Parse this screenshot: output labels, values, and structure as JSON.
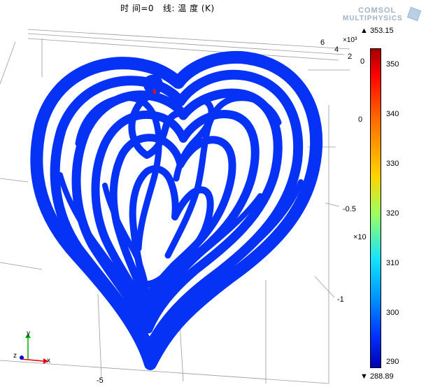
{
  "title_text": "时 间=0   线: 温 度 (K)",
  "logo": {
    "line1": "COMSOL",
    "line2": "MULTIPHYSICS",
    "icon": "comsol-cube-icon"
  },
  "axes": {
    "depth_ticks": [
      "6",
      "4",
      "2"
    ],
    "depth_exponent": "×10³",
    "y_ticks": [
      "0",
      "0",
      "-0.5",
      "-1"
    ],
    "y_exponent": "×10",
    "x_ticks": [
      "-5"
    ],
    "triad": {
      "x": "x",
      "y": "y",
      "z": "z"
    }
  },
  "colorbar": {
    "max_label": "▲ 353.15",
    "min_label": "▼ 288.89",
    "ticks": [
      "350",
      "340",
      "330",
      "320",
      "310",
      "300",
      "290"
    ]
  },
  "colors": {
    "curve": "#0532f5",
    "bar_top": "#a10000",
    "bar_bottom": "#0000b0"
  }
}
